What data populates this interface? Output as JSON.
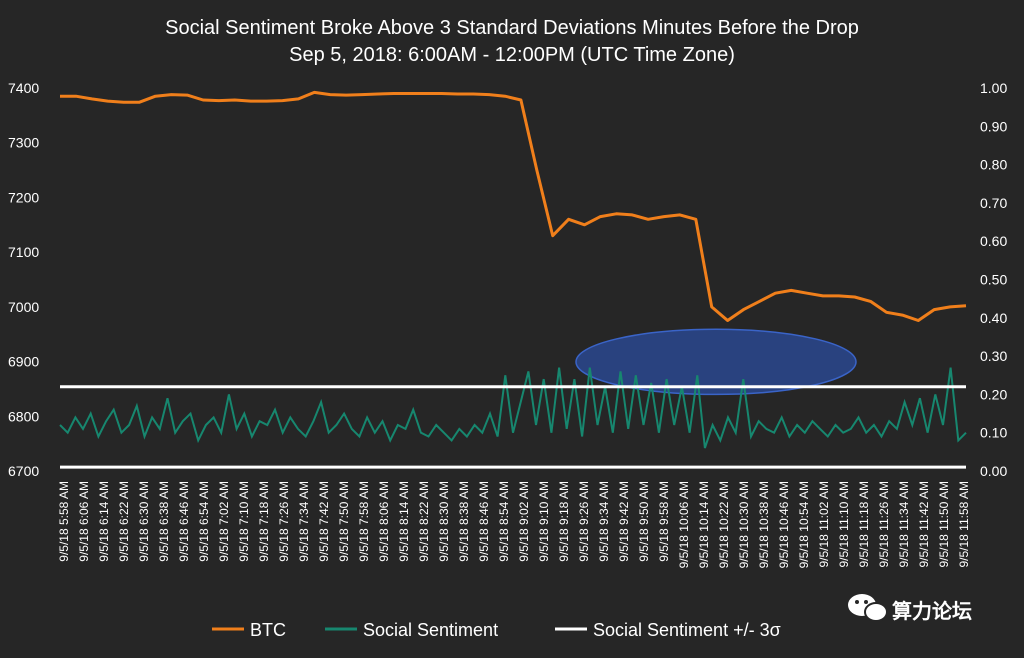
{
  "chart_data": {
    "type": "line",
    "title": "Social Sentiment Broke Above 3 Standard Deviations Minutes Before the Drop",
    "subtitle": "Sep 5, 2018: 6:00AM - 12:00PM  (UTC Time Zone)",
    "y_left": {
      "range": [
        6700,
        7400
      ],
      "ticks": [
        "7400",
        "7300",
        "7200",
        "7100",
        "7000",
        "6900",
        "6800",
        "6700"
      ]
    },
    "y_right": {
      "range": [
        0.0,
        1.0
      ],
      "ticks": [
        "1.00",
        "0.90",
        "0.80",
        "0.70",
        "0.60",
        "0.50",
        "0.40",
        "0.30",
        "0.20",
        "0.10",
        "0.00"
      ]
    },
    "x_ticks": [
      "9/5/18 5:58 AM",
      "9/5/18 6:06 AM",
      "9/5/18 6:14 AM",
      "9/5/18 6:22 AM",
      "9/5/18 6:30 AM",
      "9/5/18 6:38 AM",
      "9/5/18 6:46 AM",
      "9/5/18 6:54 AM",
      "9/5/18 7:02 AM",
      "9/5/18 7:10 AM",
      "9/5/18 7:18 AM",
      "9/5/18 7:26 AM",
      "9/5/18 7:34 AM",
      "9/5/18 7:42 AM",
      "9/5/18 7:50 AM",
      "9/5/18 7:58 AM",
      "9/5/18 8:06 AM",
      "9/5/18 8:14 AM",
      "9/5/18 8:22 AM",
      "9/5/18 8:30 AM",
      "9/5/18 8:38 AM",
      "9/5/18 8:46 AM",
      "9/5/18 8:54 AM",
      "9/5/18 9:02 AM",
      "9/5/18 9:10 AM",
      "9/5/18 9:18 AM",
      "9/5/18 9:26 AM",
      "9/5/18 9:34 AM",
      "9/5/18 9:42 AM",
      "9/5/18 9:50 AM",
      "9/5/18 9:58 AM",
      "9/5/18 10:06 AM",
      "9/5/18 10:14 AM",
      "9/5/18 10:22 AM",
      "9/5/18 10:30 AM",
      "9/5/18 10:38 AM",
      "9/5/18 10:46 AM",
      "9/5/18 10:54 AM",
      "9/5/18 11:02 AM",
      "9/5/18 11:10 AM",
      "9/5/18 11:18 AM",
      "9/5/18 11:26 AM",
      "9/5/18 11:34 AM",
      "9/5/18 11:42 AM",
      "9/5/18 11:50 AM",
      "9/5/18 11:58 AM"
    ],
    "series": [
      {
        "name": "BTC",
        "axis": "left",
        "color": "#F07F1B",
        "values": [
          7385,
          7385,
          7380,
          7376,
          7374,
          7374,
          7385,
          7388,
          7387,
          7378,
          7377,
          7378,
          7376,
          7376,
          7377,
          7380,
          7392,
          7388,
          7387,
          7388,
          7389,
          7390,
          7390,
          7390,
          7390,
          7389,
          7389,
          7388,
          7385,
          7378,
          7250,
          7130,
          7160,
          7150,
          7165,
          7170,
          7168,
          7160,
          7165,
          7168,
          7160,
          7000,
          6975,
          6995,
          7010,
          7025,
          7030,
          7025,
          7020,
          7020,
          7018,
          7010,
          6990,
          6985,
          6975,
          6995,
          7000,
          7002
        ]
      },
      {
        "name": "Social Sentiment",
        "axis": "right",
        "color": "#17876F",
        "values": [
          0.12,
          0.1,
          0.14,
          0.11,
          0.15,
          0.09,
          0.13,
          0.16,
          0.1,
          0.12,
          0.17,
          0.09,
          0.14,
          0.11,
          0.19,
          0.1,
          0.13,
          0.15,
          0.08,
          0.12,
          0.14,
          0.1,
          0.2,
          0.11,
          0.15,
          0.09,
          0.13,
          0.12,
          0.16,
          0.1,
          0.14,
          0.11,
          0.09,
          0.13,
          0.18,
          0.1,
          0.12,
          0.15,
          0.11,
          0.09,
          0.14,
          0.1,
          0.13,
          0.08,
          0.12,
          0.11,
          0.16,
          0.1,
          0.09,
          0.12,
          0.1,
          0.08,
          0.11,
          0.09,
          0.12,
          0.1,
          0.15,
          0.09,
          0.25,
          0.1,
          0.18,
          0.26,
          0.12,
          0.24,
          0.1,
          0.27,
          0.11,
          0.24,
          0.09,
          0.27,
          0.12,
          0.22,
          0.1,
          0.26,
          0.11,
          0.25,
          0.12,
          0.23,
          0.1,
          0.24,
          0.12,
          0.22,
          0.1,
          0.25,
          0.06,
          0.12,
          0.08,
          0.14,
          0.1,
          0.24,
          0.09,
          0.13,
          0.11,
          0.1,
          0.14,
          0.09,
          0.12,
          0.1,
          0.13,
          0.11,
          0.09,
          0.12,
          0.1,
          0.11,
          0.14,
          0.1,
          0.12,
          0.09,
          0.13,
          0.11,
          0.18,
          0.12,
          0.19,
          0.1,
          0.2,
          0.12,
          0.27,
          0.08,
          0.1
        ]
      },
      {
        "name": "Social Sentiment +/- 3σ",
        "axis": "right",
        "color": "#FFFFFF",
        "upper": 0.22,
        "lower": 0.01
      }
    ],
    "highlight": {
      "type": "ellipse",
      "x_range": [
        "9/5/18 9:26 AM",
        "9/5/18 11:10 AM"
      ],
      "y_range": [
        0.2,
        0.37
      ],
      "color": "#2B4C9E"
    },
    "legend": {
      "position": "bottom"
    }
  },
  "watermark": {
    "text": "算力论坛",
    "icon": "wechat-icon"
  }
}
